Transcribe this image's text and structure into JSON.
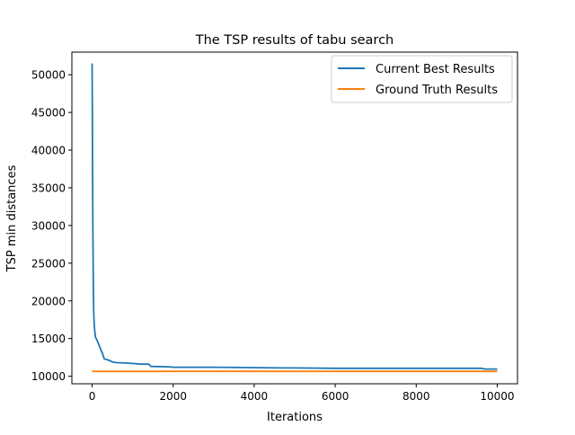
{
  "chart_data": {
    "type": "line",
    "title": "The TSP results of tabu search",
    "xlabel": "Iterations",
    "ylabel": "TSP min distances",
    "xlim": [
      -500,
      10500
    ],
    "ylim": [
      9000,
      53000
    ],
    "xticks": [
      0,
      2000,
      4000,
      6000,
      8000,
      10000
    ],
    "xtick_labels": [
      "0",
      "2000",
      "4000",
      "6000",
      "8000",
      "10000"
    ],
    "yticks": [
      10000,
      15000,
      20000,
      25000,
      30000,
      35000,
      40000,
      45000,
      50000
    ],
    "ytick_labels": [
      "10000",
      "15000",
      "20000",
      "25000",
      "30000",
      "35000",
      "40000",
      "45000",
      "50000"
    ],
    "grid": false,
    "legend_position": "top-right",
    "series": [
      {
        "name": "Current Best Results",
        "color": "#1f77b4",
        "x": [
          0,
          5,
          10,
          20,
          30,
          40,
          50,
          60,
          80,
          100,
          150,
          200,
          250,
          300,
          400,
          500,
          600,
          800,
          1000,
          1200,
          1400,
          1450,
          1900,
          2000,
          3000,
          4700,
          5000,
          6000,
          8000,
          9600,
          9700,
          10000
        ],
        "y": [
          51500,
          45000,
          38000,
          29000,
          22000,
          18500,
          17000,
          16200,
          15200,
          15000,
          14400,
          13700,
          13100,
          12300,
          12150,
          11900,
          11800,
          11750,
          11700,
          11600,
          11600,
          11300,
          11250,
          11200,
          11200,
          11100,
          11100,
          11050,
          11050,
          11050,
          10950,
          10950
        ]
      },
      {
        "name": "Ground Truth Results",
        "color": "#ff7f0e",
        "x": [
          0,
          10000
        ],
        "y": [
          10650,
          10650
        ]
      }
    ]
  }
}
